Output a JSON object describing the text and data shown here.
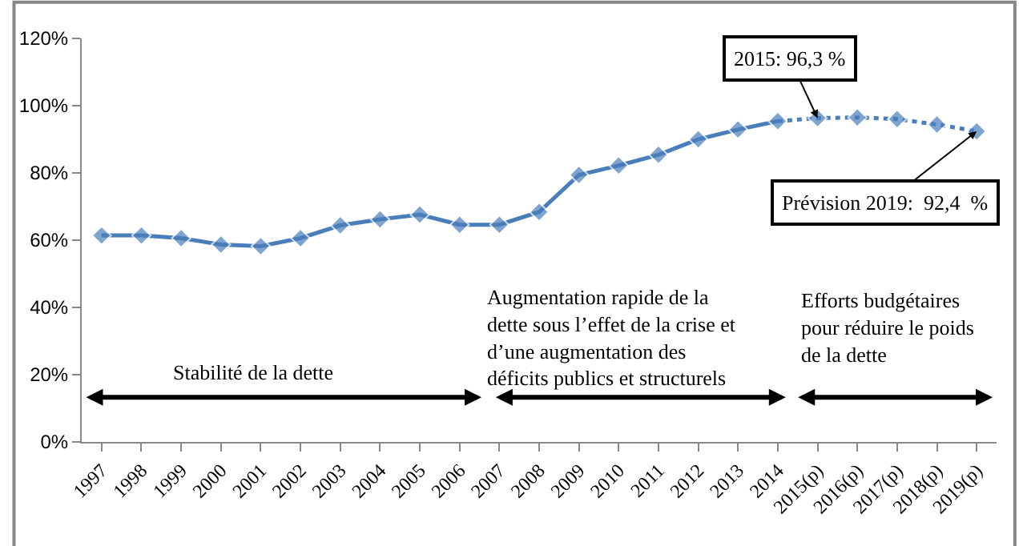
{
  "chart_data": {
    "type": "line",
    "categories": [
      "1997",
      "1998",
      "1999",
      "2000",
      "2001",
      "2002",
      "2003",
      "2004",
      "2005",
      "2006",
      "2007",
      "2008",
      "2009",
      "2010",
      "2011",
      "2012",
      "2013",
      "2014",
      "2015(p)",
      "2016(p)",
      "2017(p)",
      "2018(p)",
      "2019(p)"
    ],
    "series": [
      {
        "color": "#4a7ebb",
        "line_style": "solid",
        "values": [
          61.4,
          61.4,
          60.6,
          58.7,
          58.2,
          60.6,
          64.4,
          66.2,
          67.6,
          64.6,
          64.6,
          68.4,
          79.4,
          82.2,
          85.4,
          90.0,
          92.9,
          95.4,
          null,
          null,
          null,
          null,
          null
        ]
      },
      {
        "color": "#4a7ebb",
        "line_style": "dotted",
        "values": [
          null,
          null,
          null,
          null,
          null,
          null,
          null,
          null,
          null,
          null,
          null,
          null,
          null,
          null,
          null,
          null,
          null,
          95.4,
          96.3,
          96.5,
          96.0,
          94.4,
          92.4
        ]
      }
    ],
    "ylim": [
      0,
      120
    ],
    "yticks": [
      {
        "value": 0,
        "label": "0%"
      },
      {
        "value": 20,
        "label": "20%"
      },
      {
        "value": 40,
        "label": "40%"
      },
      {
        "value": 60,
        "label": "60%"
      },
      {
        "value": 80,
        "label": "80%"
      },
      {
        "value": 100,
        "label": "100%"
      },
      {
        "value": 120,
        "label": "120%"
      }
    ],
    "marker": "diamond",
    "annotations": [
      {
        "text": "2015: 96,3 %",
        "x": "2015(p)",
        "y": 96.3
      },
      {
        "text": "Prévision 2019:  92,4  %",
        "x": "2019(p)",
        "y": 92.4
      },
      "Stabilité de la dette",
      "Augmentation rapide de la\ndette sous l’effet de la crise et\nd’une augmentation des\ndéficits publics et structurels",
      "Efforts budgétaires\npour réduire le poids\nde la dette"
    ]
  }
}
